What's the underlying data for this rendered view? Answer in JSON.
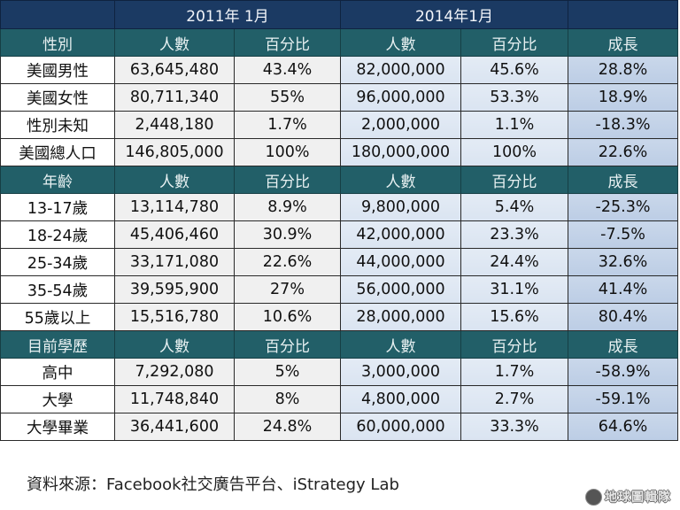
{
  "periods": {
    "blank": "",
    "p2011": "2011年 1月",
    "p2014": "2014年1月",
    "growth_blank": ""
  },
  "columns": {
    "count": "人數",
    "percent": "百分比",
    "growth": "成長"
  },
  "sections": [
    {
      "title": "性別",
      "rows": [
        {
          "label": "美國男性",
          "count_2011": "63,645,480",
          "pct_2011": "43.4%",
          "count_2014": "82,000,000",
          "pct_2014": "45.6%",
          "growth": "28.8%",
          "negative": false
        },
        {
          "label": "美國女性",
          "count_2011": "80,711,340",
          "pct_2011": "55%",
          "count_2014": "96,000,000",
          "pct_2014": "53.3%",
          "growth": "18.9%",
          "negative": false
        },
        {
          "label": "性別未知",
          "count_2011": "2,448,180",
          "pct_2011": "1.7%",
          "count_2014": "2,000,000",
          "pct_2014": "1.1%",
          "growth": "-18.3%",
          "negative": true
        },
        {
          "label": "美國總人口",
          "count_2011": "146,805,000",
          "pct_2011": "100%",
          "count_2014": "180,000,000",
          "pct_2014": "100%",
          "growth": "22.6%",
          "negative": false
        }
      ]
    },
    {
      "title": "年齡",
      "rows": [
        {
          "label": "13-17歲",
          "count_2011": "13,114,780",
          "pct_2011": "8.9%",
          "count_2014": "9,800,000",
          "pct_2014": "5.4%",
          "growth": "-25.3%",
          "negative": true
        },
        {
          "label": "18-24歲",
          "count_2011": "45,406,460",
          "pct_2011": "30.9%",
          "count_2014": "42,000,000",
          "pct_2014": "23.3%",
          "growth": "-7.5%",
          "negative": true
        },
        {
          "label": "25-34歲",
          "count_2011": "33,171,080",
          "pct_2011": "22.6%",
          "count_2014": "44,000,000",
          "pct_2014": "24.4%",
          "growth": "32.6%",
          "negative": false
        },
        {
          "label": "35-54歲",
          "count_2011": "39,595,900",
          "pct_2011": "27%",
          "count_2014": "56,000,000",
          "pct_2014": "31.1%",
          "growth": "41.4%",
          "negative": false
        },
        {
          "label": "55歲以上",
          "count_2011": "15,516,780",
          "pct_2011": "10.6%",
          "count_2014": "28,000,000",
          "pct_2014": "15.6%",
          "growth": "80.4%",
          "negative": false
        }
      ]
    },
    {
      "title": "目前學歷",
      "rows": [
        {
          "label": "高中",
          "count_2011": "7,292,080",
          "pct_2011": "5%",
          "count_2014": "3,000,000",
          "pct_2014": "1.7%",
          "growth": "-58.9%",
          "negative": true
        },
        {
          "label": "大學",
          "count_2011": "11,748,840",
          "pct_2011": "8%",
          "count_2014": "4,800,000",
          "pct_2014": "2.7%",
          "growth": "-59.1%",
          "negative": true
        },
        {
          "label": "大學畢業",
          "count_2011": "36,441,600",
          "pct_2011": "24.8%",
          "count_2014": "60,000,000",
          "pct_2014": "33.3%",
          "growth": "64.6%",
          "negative": false
        }
      ]
    }
  ],
  "source": "資料來源：Facebook社交廣告平台、iStrategy Lab",
  "watermark": {
    "icon": "globe-icon",
    "text": "地球圖輯隊"
  },
  "colors": {
    "period_header": "#1b3a63",
    "section_header": "#225f68",
    "negative_text": "#c0121b",
    "growth_cell": "#c9d7ea",
    "col2014_cell": "#e3ebf5",
    "col2011_cell": "#f0f0f0"
  }
}
